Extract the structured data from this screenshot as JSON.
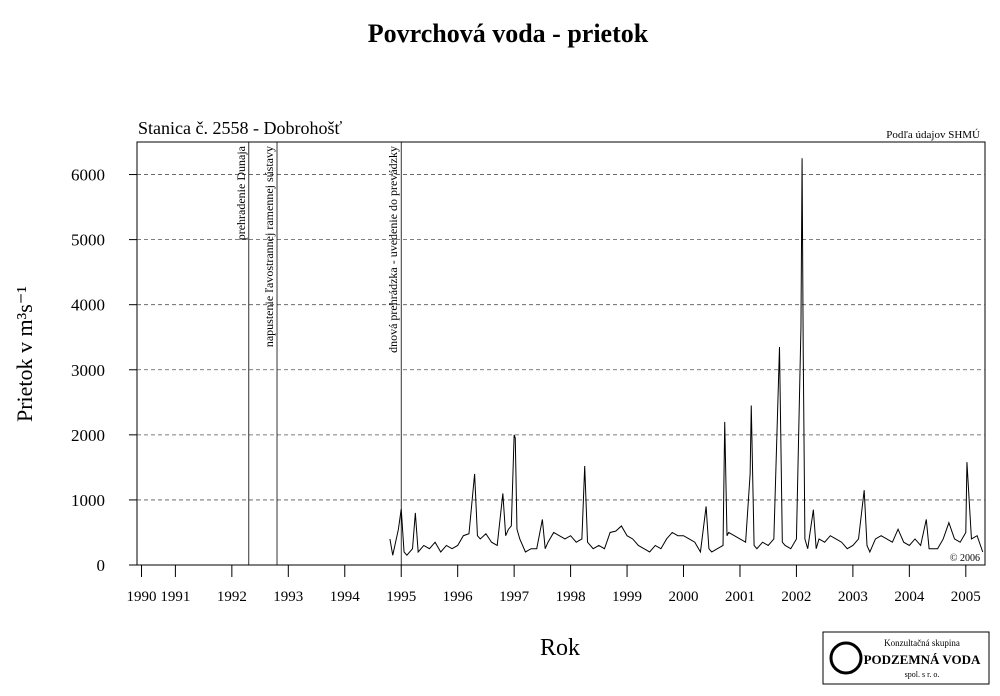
{
  "chart_data": {
    "type": "line",
    "title": "Povrchová voda - prietok",
    "subtitle": "Stanica č. 2558 - Dobrohošť",
    "source": "Podľa údajov SHMÚ",
    "copyright": "© 2006",
    "x_label": "Rok",
    "y_label": "Prietok v m³s⁻¹",
    "logo": {
      "line1": "Konzultačná skupina",
      "line2": "PODZEMNÁ VODA",
      "line3": "spol. s r. o."
    },
    "annotations": [
      {
        "x": 1992.3,
        "text": "prehradenie Dunaja"
      },
      {
        "x": 1992.8,
        "text": "napustenie ľavostrannej ramennej sústavy"
      },
      {
        "x": 1995.0,
        "text": "dnová prehrádzka - uvedenie do prevádzky"
      }
    ],
    "xlim": [
      1990.32,
      2005.34
    ],
    "xticks": [
      {
        "value": 1990.4,
        "label": "1990"
      },
      1991,
      1992,
      1993,
      1994,
      1995,
      1996,
      1997,
      1998,
      1999,
      2000,
      2001,
      2002,
      2003,
      2004,
      2005
    ],
    "ylim": [
      0,
      6500
    ],
    "yticks": [
      0,
      1000,
      2000,
      3000,
      4000,
      5000,
      6000
    ],
    "grid": true,
    "series": [
      {
        "color": "#000000",
        "x": [
          1994.8,
          1994.85,
          1994.9,
          1994.95,
          1995.0,
          1995.05,
          1995.1,
          1995.2,
          1995.25,
          1995.3,
          1995.4,
          1995.5,
          1995.6,
          1995.7,
          1995.8,
          1995.9,
          1996.0,
          1996.1,
          1996.2,
          1996.3,
          1996.35,
          1996.4,
          1996.5,
          1996.6,
          1996.7,
          1996.8,
          1996.85,
          1996.9,
          1996.95,
          1997.0,
          1997.02,
          1997.05,
          1997.1,
          1997.2,
          1997.3,
          1997.4,
          1997.5,
          1997.55,
          1997.6,
          1997.7,
          1997.8,
          1997.9,
          1998.0,
          1998.1,
          1998.2,
          1998.25,
          1998.3,
          1998.4,
          1998.5,
          1998.6,
          1998.7,
          1998.8,
          1998.9,
          1999.0,
          1999.1,
          1999.2,
          1999.3,
          1999.4,
          1999.5,
          1999.6,
          1999.7,
          1999.8,
          1999.9,
          2000.0,
          2000.1,
          2000.2,
          2000.3,
          2000.4,
          2000.45,
          2000.5,
          2000.6,
          2000.7,
          2000.73,
          2000.77,
          2000.8,
          2000.9,
          2001.0,
          2001.1,
          2001.18,
          2001.2,
          2001.25,
          2001.3,
          2001.4,
          2001.5,
          2001.6,
          2001.7,
          2001.75,
          2001.8,
          2001.9,
          2002.0,
          2002.08,
          2002.1,
          2002.12,
          2002.15,
          2002.2,
          2002.3,
          2002.35,
          2002.4,
          2002.5,
          2002.6,
          2002.7,
          2002.8,
          2002.9,
          2003.0,
          2003.1,
          2003.2,
          2003.25,
          2003.3,
          2003.4,
          2003.5,
          2003.6,
          2003.7,
          2003.8,
          2003.9,
          2004.0,
          2004.1,
          2004.2,
          2004.3,
          2004.35,
          2004.5,
          2004.6,
          2004.7,
          2004.8,
          2004.9,
          2005.0,
          2005.02,
          2005.1,
          2005.2,
          2005.3
        ],
        "values": [
          400,
          150,
          350,
          550,
          860,
          200,
          150,
          250,
          800,
          200,
          300,
          250,
          350,
          200,
          300,
          250,
          300,
          450,
          480,
          1400,
          450,
          400,
          480,
          350,
          300,
          1100,
          450,
          550,
          600,
          2000,
          1950,
          550,
          400,
          200,
          250,
          250,
          700,
          250,
          350,
          500,
          450,
          400,
          450,
          350,
          400,
          1520,
          350,
          250,
          300,
          250,
          500,
          520,
          600,
          450,
          400,
          300,
          250,
          200,
          300,
          250,
          400,
          500,
          450,
          450,
          400,
          350,
          200,
          900,
          250,
          200,
          250,
          300,
          2200,
          450,
          500,
          450,
          400,
          350,
          1400,
          2450,
          300,
          250,
          350,
          300,
          400,
          3350,
          350,
          300,
          250,
          400,
          3650,
          6250,
          3300,
          400,
          250,
          850,
          250,
          400,
          350,
          450,
          400,
          350,
          250,
          300,
          400,
          1150,
          300,
          200,
          400,
          450,
          400,
          350,
          550,
          350,
          300,
          400,
          300,
          700,
          250,
          250,
          400,
          650,
          400,
          350,
          500,
          1580,
          400,
          450,
          200
        ]
      }
    ]
  }
}
